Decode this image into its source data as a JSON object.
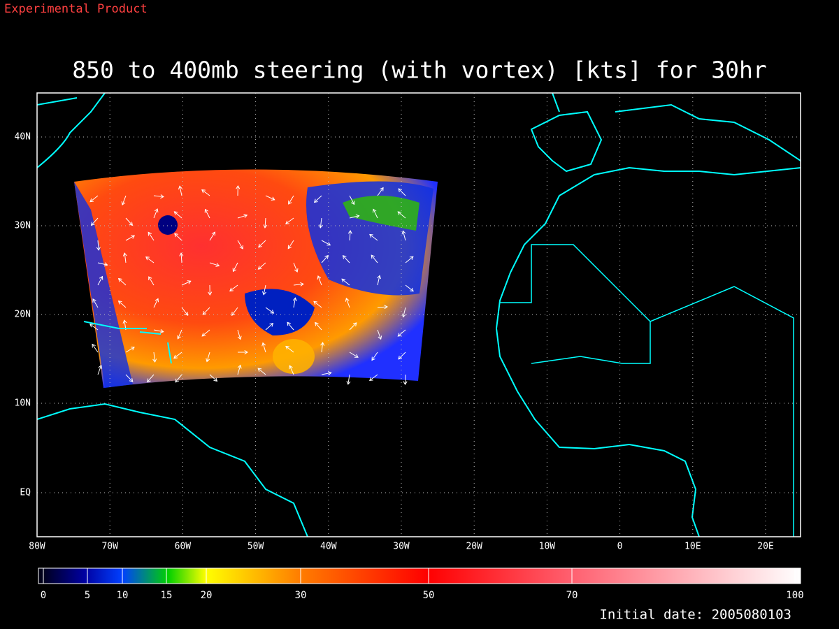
{
  "header": {
    "label": "Experimental Product"
  },
  "title": "850 to 400mb steering (with vortex) [kts] for 30hr",
  "map": {
    "lat_labels": [
      "40N",
      "30N",
      "20N",
      "10N",
      "EQ"
    ],
    "lon_labels": [
      "80W",
      "70W",
      "60W",
      "50W",
      "40W",
      "30W",
      "20W",
      "10W",
      "0",
      "10E",
      "20E"
    ]
  },
  "colorbar": {
    "labels": [
      "0",
      "5",
      "10",
      "15",
      "20",
      "30",
      "50",
      "70",
      "100"
    ]
  },
  "footer": {
    "initial_date": "Initial date: 2005080103"
  }
}
